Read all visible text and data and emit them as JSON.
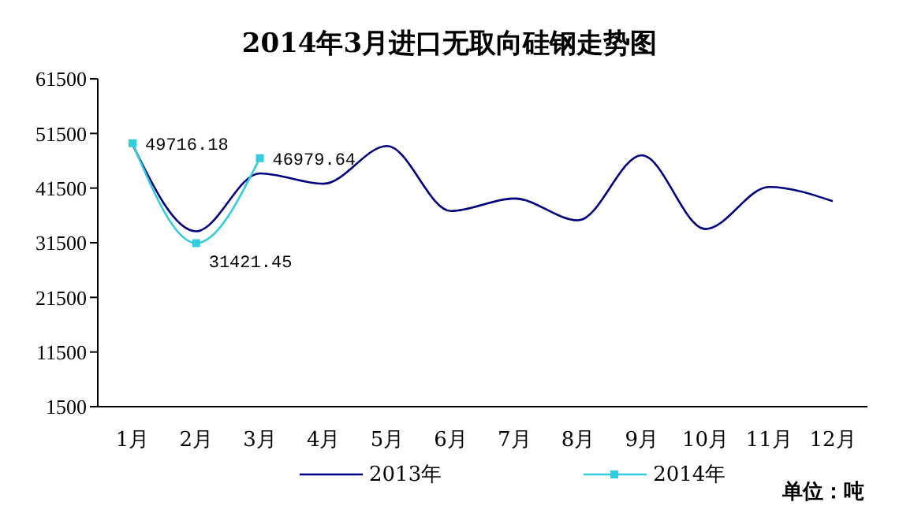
{
  "chart_data": {
    "type": "line",
    "title": "2014年3月进口无取向硅钢走势图",
    "categories": [
      "1月",
      "2月",
      "3月",
      "4月",
      "5月",
      "6月",
      "7月",
      "8月",
      "9月",
      "10月",
      "11月",
      "12月"
    ],
    "series": [
      {
        "name": "2013年",
        "color": "#000080",
        "marker": "none",
        "values": [
          49500,
          33600,
          44200,
          42300,
          49200,
          37300,
          39600,
          35600,
          47500,
          34000,
          41700,
          39100
        ]
      },
      {
        "name": "2014年",
        "color": "#33ccdd",
        "marker": "square",
        "values": [
          49716.18,
          31421.45,
          46979.64,
          null,
          null,
          null,
          null,
          null,
          null,
          null,
          null,
          null
        ],
        "value_labels": [
          "49716.18",
          "31421.45",
          "46979.64",
          null,
          null,
          null,
          null,
          null,
          null,
          null,
          null,
          null
        ]
      }
    ],
    "ylim": [
      1500,
      61500
    ],
    "yticks": [
      1500,
      11500,
      21500,
      31500,
      41500,
      51500,
      61500
    ],
    "legend": "bottom",
    "annotations": [
      "单位：吨"
    ]
  }
}
